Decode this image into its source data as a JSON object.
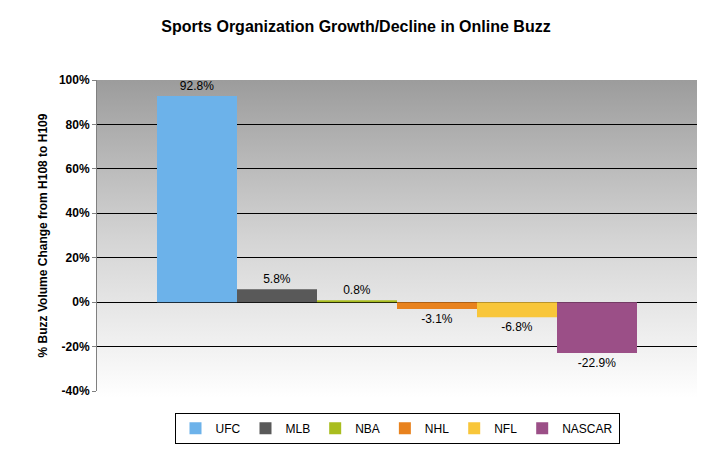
{
  "chart_data": {
    "type": "bar",
    "title": "Sports Organization Growth/Decline in Online Buzz",
    "y_label": "% Buzz Volume Change from H108 to H109",
    "categories": [
      null
    ],
    "series": [
      {
        "name": "UFC",
        "color": "#6cb2ea",
        "values": [
          92.8
        ],
        "value_labels": [
          "92.8%"
        ]
      },
      {
        "name": "MLB",
        "color": "#595959",
        "values": [
          5.8
        ],
        "value_labels": [
          "5.8%"
        ]
      },
      {
        "name": "NBA",
        "color": "#a9bd1f",
        "values": [
          0.8
        ],
        "value_labels": [
          "0.8%"
        ]
      },
      {
        "name": "NHL",
        "color": "#e8821e",
        "values": [
          -3.1
        ],
        "value_labels": [
          "-3.1%"
        ]
      },
      {
        "name": "NFL",
        "color": "#f8c63a",
        "values": [
          -6.8
        ],
        "value_labels": [
          "-6.8%"
        ]
      },
      {
        "name": "NASCAR",
        "color": "#9b4f87",
        "values": [
          -22.9
        ],
        "value_labels": [
          "-22.9%"
        ]
      }
    ],
    "ylim": [
      -40,
      100
    ],
    "yticks": [
      {
        "value": -40,
        "label": "-40%"
      },
      {
        "value": -20,
        "label": "-20%"
      },
      {
        "value": 0,
        "label": "0%"
      },
      {
        "value": 20,
        "label": "20%"
      },
      {
        "value": 40,
        "label": "40%"
      },
      {
        "value": 60,
        "label": "60%"
      },
      {
        "value": 80,
        "label": "80%"
      },
      {
        "value": 100,
        "label": "100%"
      }
    ],
    "grid": true,
    "legend": "bottom",
    "data_labels": true
  }
}
